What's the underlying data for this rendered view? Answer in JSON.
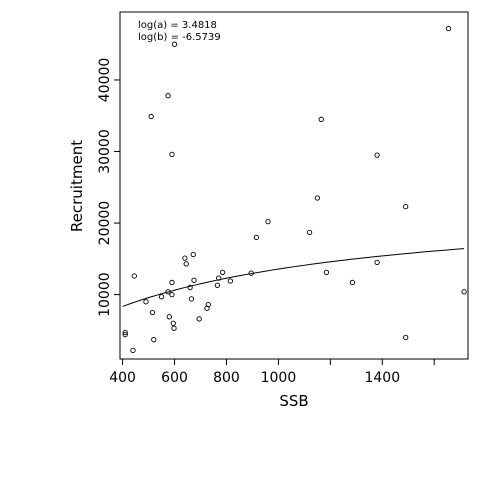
{
  "chart_data": {
    "type": "scatter",
    "xlabel": "SSB",
    "ylabel": "Recruitment",
    "xlim": [
      390,
      1730
    ],
    "ylim": [
      1000,
      49500
    ],
    "xticks": [
      400,
      600,
      800,
      1000,
      1400
    ],
    "xtick_marks": [
      400,
      600,
      800,
      1000,
      1200,
      1400,
      1600
    ],
    "yticks": [
      10000,
      20000,
      30000,
      40000
    ],
    "annotations": [
      "log(a) = 3.4818",
      "log(b) = -6.5739"
    ],
    "fit_curve": {
      "form": "Beverton-Holt",
      "log_a": 3.4818,
      "log_b": -6.5739,
      "x_range": [
        400,
        1715
      ]
    },
    "points": [
      {
        "x": 410,
        "y": 4700
      },
      {
        "x": 410,
        "y": 4400
      },
      {
        "x": 440,
        "y": 2200
      },
      {
        "x": 445,
        "y": 12600
      },
      {
        "x": 490,
        "y": 9000
      },
      {
        "x": 510,
        "y": 34900
      },
      {
        "x": 515,
        "y": 7500
      },
      {
        "x": 520,
        "y": 3700
      },
      {
        "x": 550,
        "y": 9700
      },
      {
        "x": 575,
        "y": 37800
      },
      {
        "x": 575,
        "y": 10400
      },
      {
        "x": 580,
        "y": 6900
      },
      {
        "x": 590,
        "y": 29600
      },
      {
        "x": 590,
        "y": 11700
      },
      {
        "x": 590,
        "y": 10000
      },
      {
        "x": 595,
        "y": 6000
      },
      {
        "x": 598,
        "y": 5300
      },
      {
        "x": 600,
        "y": 45000
      },
      {
        "x": 640,
        "y": 15100
      },
      {
        "x": 645,
        "y": 14300
      },
      {
        "x": 660,
        "y": 11000
      },
      {
        "x": 665,
        "y": 9400
      },
      {
        "x": 672,
        "y": 15600
      },
      {
        "x": 675,
        "y": 12000
      },
      {
        "x": 695,
        "y": 6600
      },
      {
        "x": 725,
        "y": 8100
      },
      {
        "x": 730,
        "y": 8600
      },
      {
        "x": 765,
        "y": 11300
      },
      {
        "x": 770,
        "y": 12300
      },
      {
        "x": 785,
        "y": 13100
      },
      {
        "x": 815,
        "y": 11900
      },
      {
        "x": 895,
        "y": 13000
      },
      {
        "x": 915,
        "y": 18000
      },
      {
        "x": 960,
        "y": 20200
      },
      {
        "x": 1120,
        "y": 18700
      },
      {
        "x": 1150,
        "y": 23500
      },
      {
        "x": 1165,
        "y": 34500
      },
      {
        "x": 1185,
        "y": 13100
      },
      {
        "x": 1285,
        "y": 11700
      },
      {
        "x": 1380,
        "y": 29500
      },
      {
        "x": 1380,
        "y": 14500
      },
      {
        "x": 1490,
        "y": 22300
      },
      {
        "x": 1490,
        "y": 4000
      },
      {
        "x": 1655,
        "y": 47200
      },
      {
        "x": 1715,
        "y": 10400
      }
    ]
  }
}
